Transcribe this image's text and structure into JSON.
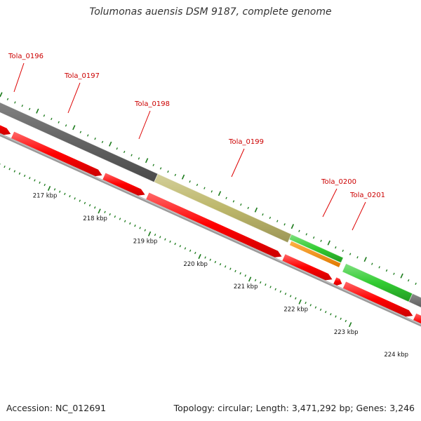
{
  "title": "Tolumonas auensis DSM 9187, complete genome",
  "footer": {
    "accession": "Accession: NC_012691",
    "topology": "Topology: circular; Length: 3,471,292 bp; Genes: 3,246"
  },
  "genes": [
    {
      "name": "Tola_0196",
      "color": "#666666"
    },
    {
      "name": "Tola_0197",
      "color": "#666666"
    },
    {
      "name": "Tola_0198",
      "color": "#666666"
    },
    {
      "name": "Tola_0199",
      "color": "#bdb76b"
    },
    {
      "name": "Tola_0200",
      "color": "#33cc33"
    },
    {
      "name": "Tola_0201",
      "color": "#33cc33"
    }
  ],
  "scale_labels": [
    "217 kbp",
    "218 kbp",
    "219 kbp",
    "220 kbp",
    "221 kbp",
    "222 kbp",
    "223 kbp",
    "224 kbp"
  ],
  "colors": {
    "gene_label": "#cc0000",
    "cds": "#ff0000",
    "rna": "#ff8c00",
    "backbone": "#888888",
    "tick": "#1a7a1a",
    "leader_line": "#dd0000"
  }
}
